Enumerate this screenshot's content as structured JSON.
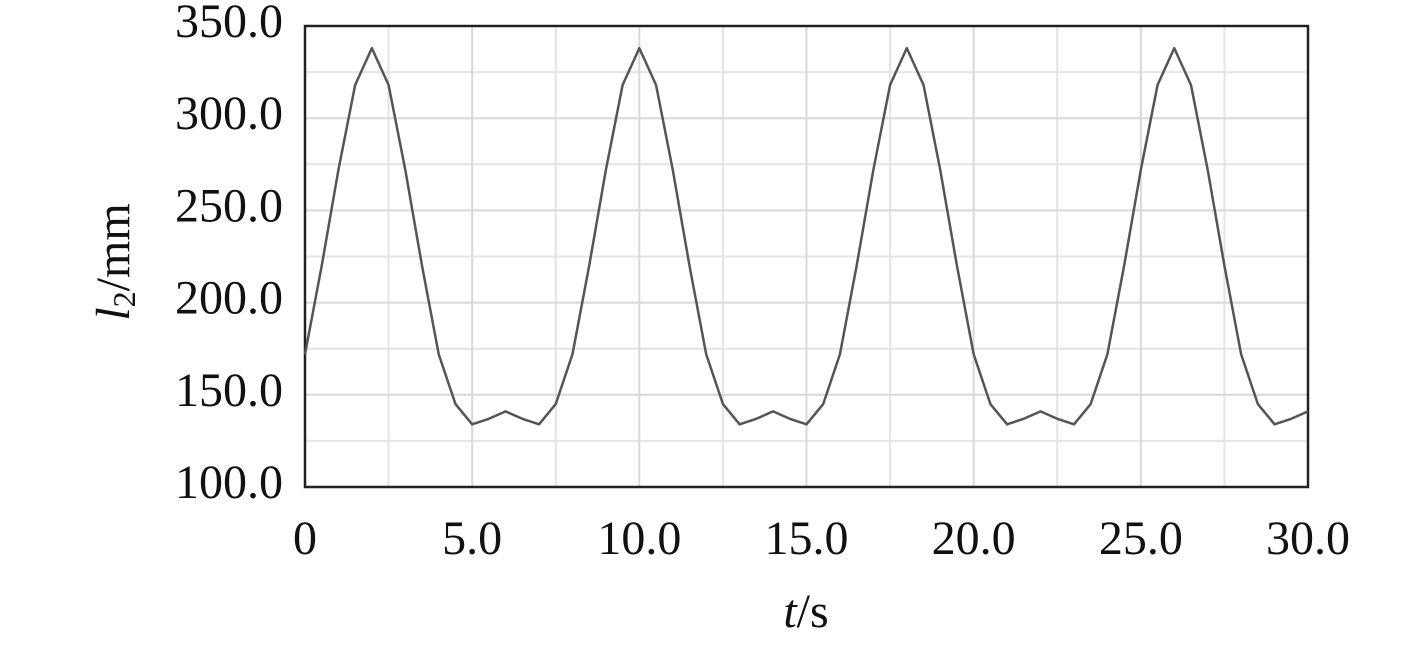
{
  "chart_data": {
    "type": "line",
    "ylabel": {
      "symbol": "l",
      "subscript": "2",
      "unit": "/mm"
    },
    "xlabel": {
      "symbol": "t",
      "unit": "/s"
    },
    "x": [
      0,
      0.5,
      1,
      1.5,
      2,
      2.5,
      3,
      3.5,
      4,
      4.5,
      5,
      5.5,
      6,
      6.5,
      7,
      7.5,
      8,
      8.5,
      9,
      9.5,
      10,
      10.5,
      11,
      11.5,
      12,
      12.5,
      13,
      13.5,
      14,
      14.5,
      15,
      15.5,
      16,
      16.5,
      17,
      17.5,
      18,
      18.5,
      19,
      19.5,
      20,
      20.5,
      21,
      21.5,
      22,
      22.5,
      23,
      23.5,
      24,
      24.5,
      25,
      25.5,
      26,
      26.5,
      27,
      27.5,
      28,
      28.5,
      29,
      29.5,
      30
    ],
    "series": [
      {
        "color": "#555555",
        "values": [
          172,
          220,
          272,
          318,
          338,
          318,
          272,
          220,
          172,
          145,
          134,
          137,
          141,
          137,
          134,
          145,
          172,
          220,
          272,
          318,
          338,
          318,
          272,
          220,
          172,
          145,
          134,
          137,
          141,
          137,
          134,
          145,
          172,
          220,
          272,
          318,
          338,
          318,
          272,
          220,
          172,
          145,
          134,
          137,
          141,
          137,
          134,
          145,
          172,
          220,
          272,
          318,
          338,
          318,
          272,
          220,
          172,
          145,
          134,
          137,
          141
        ]
      }
    ],
    "xlim": [
      0,
      30
    ],
    "ylim": [
      100,
      350
    ],
    "xticks": [
      0,
      {
        "value": 5,
        "label": "5.0"
      },
      {
        "value": 10,
        "label": "10.0"
      },
      {
        "value": 15,
        "label": "15.0"
      },
      {
        "value": 20,
        "label": "20.0"
      },
      {
        "value": 25,
        "label": "25.0"
      },
      {
        "value": 30,
        "label": "30.0"
      }
    ],
    "yticks": [
      {
        "value": 100,
        "label": "100.0"
      },
      {
        "value": 150,
        "label": "150.0"
      },
      {
        "value": 200,
        "label": "200.0"
      },
      {
        "value": 250,
        "label": "250.0"
      },
      {
        "value": 300,
        "label": "300.0"
      },
      {
        "value": 350,
        "label": "350.0"
      }
    ],
    "x_minor_ticks": [
      2.5,
      7.5,
      12.5,
      17.5,
      22.5,
      27.5
    ],
    "y_minor_ticks": [
      125,
      175,
      225,
      275,
      325
    ],
    "grid": true
  }
}
